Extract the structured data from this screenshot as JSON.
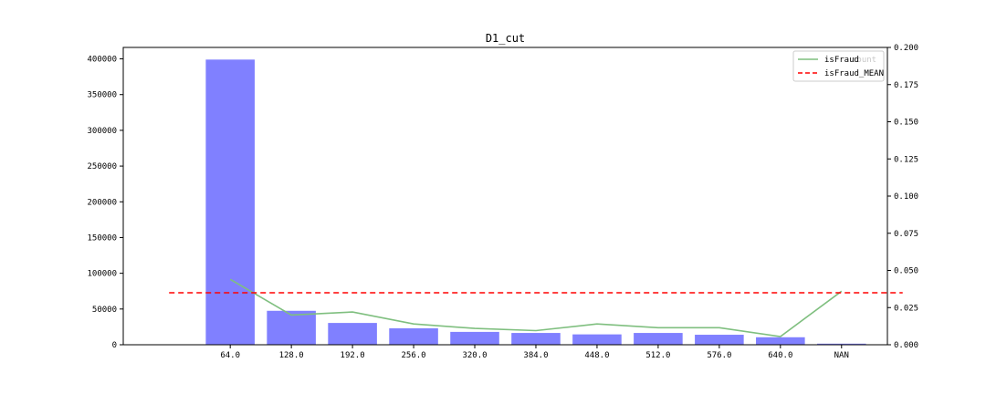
{
  "chart_data": {
    "type": "bar",
    "title": "D1_cut",
    "xlabel": "",
    "ylabel": "",
    "categories": [
      "64.0",
      "128.0",
      "192.0",
      "256.0",
      "320.0",
      "384.0",
      "448.0",
      "512.0",
      "576.0",
      "640.0",
      "NAN"
    ],
    "series": [
      {
        "name": "count",
        "type": "bar",
        "axis": "left",
        "color": "#8080ff",
        "values": [
          399000,
          47500,
          30500,
          23000,
          18000,
          16500,
          14500,
          16500,
          14000,
          10500,
          1500
        ]
      },
      {
        "name": "isFraud",
        "type": "line",
        "axis": "right",
        "color": "#7fbf7f",
        "values": [
          0.044,
          0.02,
          0.022,
          0.014,
          0.011,
          0.0095,
          0.014,
          0.0115,
          0.0115,
          0.0055,
          0.036
        ]
      },
      {
        "name": "isFraud_MEAN",
        "type": "hline",
        "axis": "right",
        "color": "#ff0000",
        "value": 0.035
      }
    ],
    "ylim_left": [
      0,
      416000
    ],
    "yticks_left": [
      "0",
      "50000",
      "100000",
      "150000",
      "200000",
      "250000",
      "300000",
      "350000",
      "400000"
    ],
    "ylim_right": [
      0,
      0.2
    ],
    "yticks_right": [
      "0.000",
      "0.025",
      "0.050",
      "0.075",
      "0.100",
      "0.125",
      "0.150",
      "0.175",
      "0.200"
    ],
    "grid": false,
    "legend_position": "top-right",
    "legend": [
      "isFraud",
      "isFraud_MEAN"
    ],
    "legend_overlap_text": "count"
  }
}
